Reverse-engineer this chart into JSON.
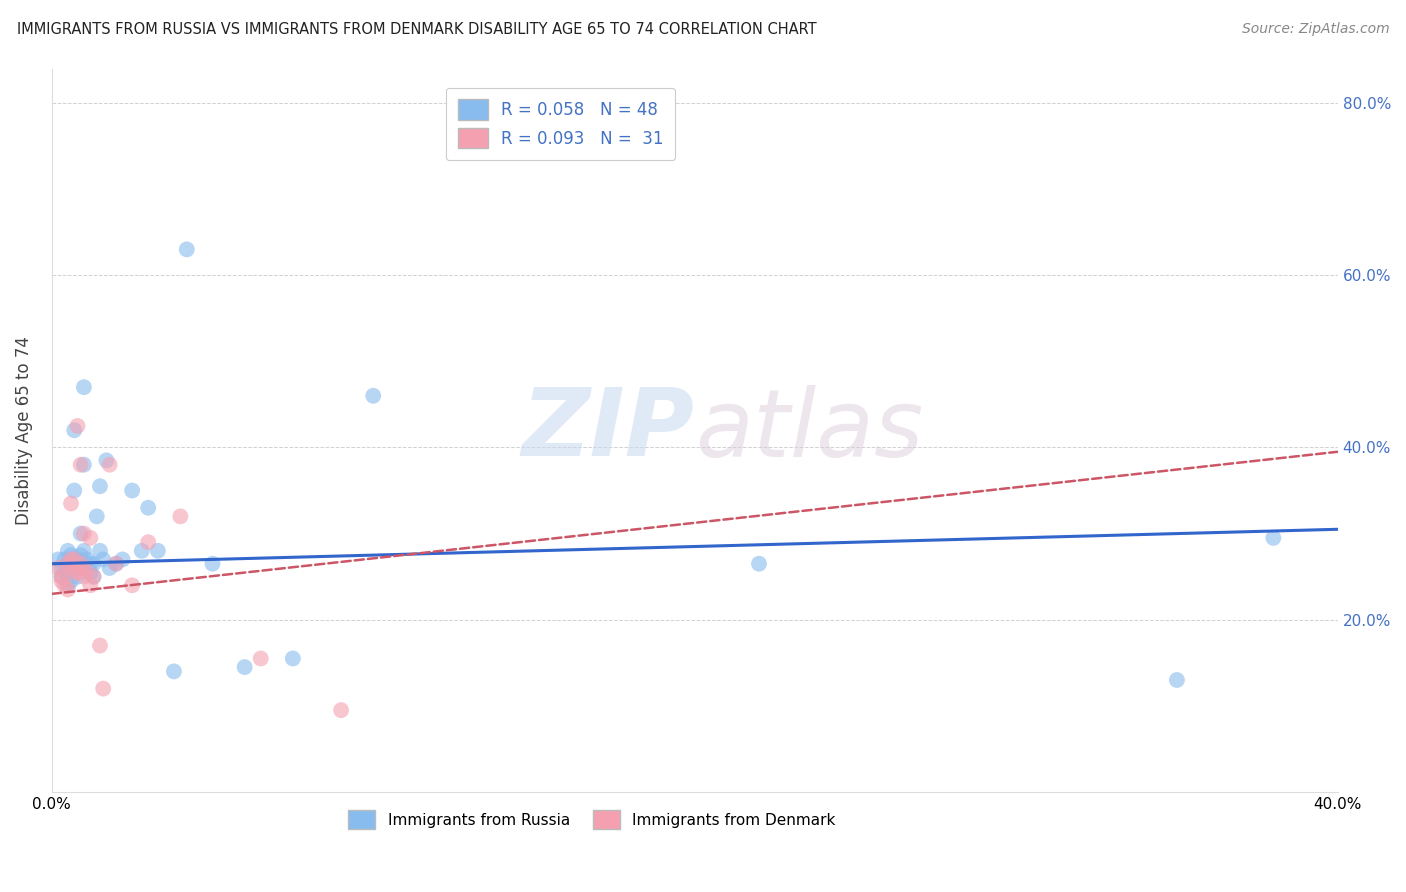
{
  "title": "IMMIGRANTS FROM RUSSIA VS IMMIGRANTS FROM DENMARK DISABILITY AGE 65 TO 74 CORRELATION CHART",
  "source": "Source: ZipAtlas.com",
  "ylabel": "Disability Age 65 to 74",
  "xlim": [
    0.0,
    0.4
  ],
  "ylim": [
    0.0,
    0.84
  ],
  "yticks": [
    0.0,
    0.2,
    0.4,
    0.6,
    0.8
  ],
  "ytick_labels": [
    "",
    "20.0%",
    "40.0%",
    "60.0%",
    "80.0%"
  ],
  "xticks": [
    0.0,
    0.05,
    0.1,
    0.15,
    0.2,
    0.25,
    0.3,
    0.35,
    0.4
  ],
  "xtick_labels": [
    "0.0%",
    "",
    "",
    "",
    "",
    "",
    "",
    "",
    "40.0%"
  ],
  "color_russia": "#88bbee",
  "color_denmark": "#f4a0b0",
  "color_russia_line": "#3366cc",
  "color_denmark_line": "#cc5566",
  "watermark_zip": "ZIP",
  "watermark_atlas": "atlas",
  "russia_x": [
    0.002,
    0.003,
    0.003,
    0.004,
    0.004,
    0.005,
    0.005,
    0.005,
    0.006,
    0.006,
    0.006,
    0.007,
    0.007,
    0.008,
    0.008,
    0.008,
    0.009,
    0.009,
    0.01,
    0.01,
    0.01,
    0.01,
    0.011,
    0.012,
    0.012,
    0.013,
    0.013,
    0.014,
    0.015,
    0.015,
    0.016,
    0.017,
    0.018,
    0.02,
    0.022,
    0.025,
    0.028,
    0.03,
    0.033,
    0.038,
    0.042,
    0.05,
    0.06,
    0.075,
    0.1,
    0.22,
    0.35,
    0.38
  ],
  "russia_y": [
    0.27,
    0.26,
    0.25,
    0.27,
    0.255,
    0.28,
    0.265,
    0.24,
    0.275,
    0.26,
    0.245,
    0.35,
    0.42,
    0.27,
    0.26,
    0.25,
    0.3,
    0.275,
    0.47,
    0.38,
    0.28,
    0.26,
    0.27,
    0.265,
    0.255,
    0.265,
    0.25,
    0.32,
    0.355,
    0.28,
    0.27,
    0.385,
    0.26,
    0.265,
    0.27,
    0.35,
    0.28,
    0.33,
    0.28,
    0.14,
    0.63,
    0.265,
    0.145,
    0.155,
    0.46,
    0.265,
    0.13,
    0.295
  ],
  "denmark_x": [
    0.002,
    0.003,
    0.003,
    0.004,
    0.005,
    0.005,
    0.006,
    0.006,
    0.006,
    0.007,
    0.007,
    0.008,
    0.008,
    0.009,
    0.009,
    0.01,
    0.01,
    0.01,
    0.011,
    0.012,
    0.012,
    0.013,
    0.015,
    0.016,
    0.018,
    0.02,
    0.025,
    0.03,
    0.04,
    0.065,
    0.09
  ],
  "denmark_y": [
    0.26,
    0.25,
    0.245,
    0.24,
    0.235,
    0.265,
    0.27,
    0.26,
    0.335,
    0.27,
    0.255,
    0.425,
    0.255,
    0.38,
    0.265,
    0.26,
    0.25,
    0.3,
    0.255,
    0.24,
    0.295,
    0.25,
    0.17,
    0.12,
    0.38,
    0.265,
    0.24,
    0.29,
    0.32,
    0.155,
    0.095
  ],
  "russia_trend_x0": 0.0,
  "russia_trend_y0": 0.265,
  "russia_trend_x1": 0.4,
  "russia_trend_y1": 0.305,
  "denmark_trend_x0": 0.0,
  "denmark_trend_y0": 0.23,
  "denmark_trend_x1": 0.4,
  "denmark_trend_y1": 0.395
}
